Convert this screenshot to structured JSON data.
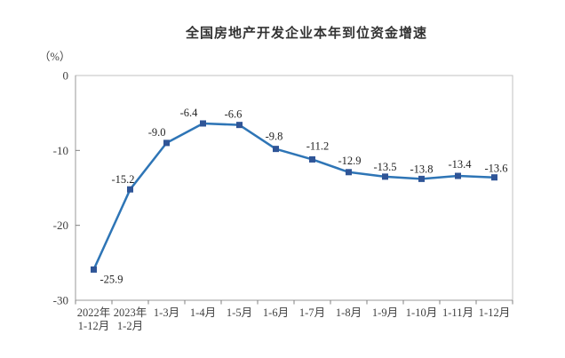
{
  "chart_data": {
    "type": "line",
    "title": "全国房地产开发企业本年到位资金增速",
    "unit_label": "（%）",
    "categories": [
      [
        "2022年",
        "1-12月"
      ],
      [
        "2023年",
        "1-2月"
      ],
      [
        "1-3月"
      ],
      [
        "1-4月"
      ],
      [
        "1-5月"
      ],
      [
        "1-6月"
      ],
      [
        "1-7月"
      ],
      [
        "1-8月"
      ],
      [
        "1-9月"
      ],
      [
        "1-10月"
      ],
      [
        "1-11月"
      ],
      [
        "1-12月"
      ]
    ],
    "values": [
      -25.9,
      -15.2,
      -9.0,
      -6.4,
      -6.6,
      -9.8,
      -11.2,
      -12.9,
      -13.5,
      -13.8,
      -13.4,
      -13.6
    ],
    "value_labels": [
      "-25.9",
      "-15.2",
      "-9.0",
      "-6.4",
      "-6.6",
      "-9.8",
      "-11.2",
      "-12.9",
      "-13.5",
      "-13.8",
      "-13.4",
      "-13.6"
    ],
    "ytick_values": [
      0,
      -10,
      -20,
      -30
    ],
    "ytick_labels": [
      "0",
      "-10",
      "-20",
      "-30"
    ],
    "ylim": [
      -30,
      0
    ],
    "xlabel": "",
    "ylabel": "（%）",
    "grid": false,
    "legend": false,
    "colors": {
      "line": "#2E75B6",
      "marker": "#2F5597",
      "axis": "#999999",
      "border": "#C0C0C0",
      "tick": "#808080",
      "text": "#404040",
      "data_label": "#1f1f1f"
    }
  }
}
